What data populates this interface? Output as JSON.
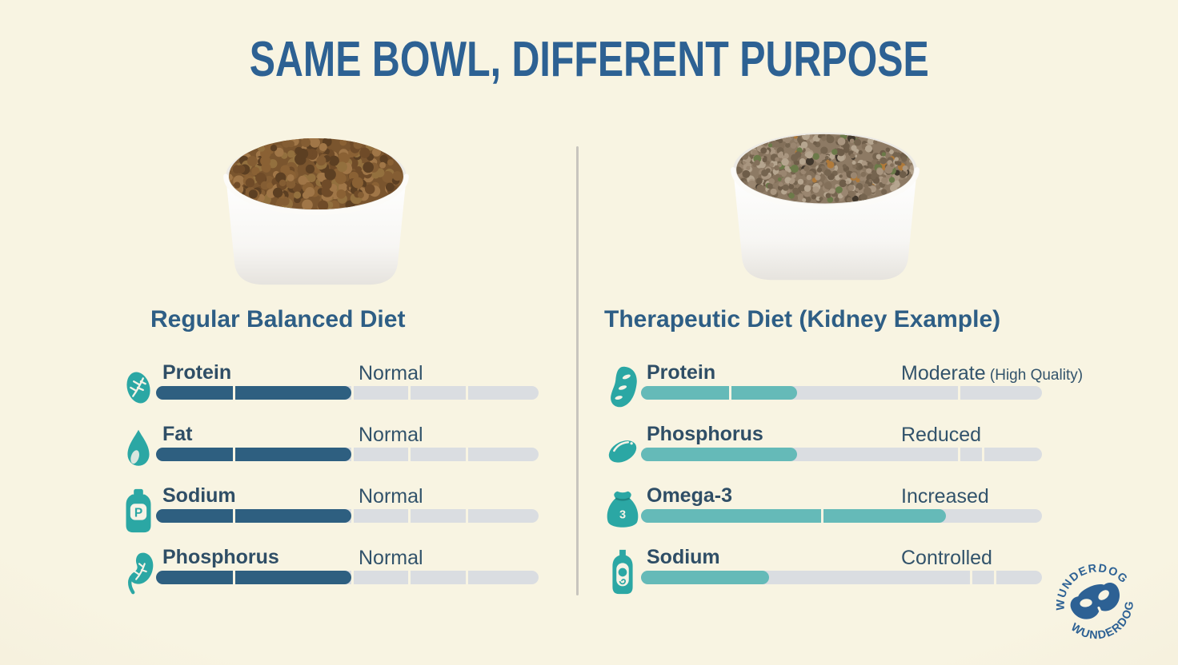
{
  "title": "SAME BOWL, DIFFERENT PURPOSE",
  "columns": [
    {
      "heading": "Regular Balanced Diet",
      "bowl": {
        "description": "white bowl of dry kibble",
        "base": "#7a552e",
        "palette": [
          "#8a6134",
          "#6f4b28",
          "#a07647",
          "#5c3f22",
          "#93703e",
          "#845d33"
        ],
        "mound_ry": 48,
        "count": 300,
        "rmin": 4,
        "rmax": 7.5
      },
      "bar_fill": "#2e5f80",
      "icon_color": "#2ba7a4",
      "rows": [
        {
          "icon": "protein-leaf-icon",
          "label": "Protein",
          "value": "Normal",
          "note": "",
          "fill_percent": 51,
          "gap_percents": [
            20,
            51,
            66,
            81
          ]
        },
        {
          "icon": "fat-droplet-icon",
          "label": "Fat",
          "value": "Normal",
          "note": "",
          "fill_percent": 51,
          "gap_percents": [
            20,
            51,
            66,
            81
          ]
        },
        {
          "icon": "sodium-bottle-icon",
          "icon_text": "P",
          "label": "Sodium",
          "value": "Normal",
          "note": "",
          "fill_percent": 51,
          "gap_percents": [
            20,
            51,
            66,
            81
          ]
        },
        {
          "icon": "phosphorus-kidney-icon",
          "label": "Phosphorus",
          "value": "Normal",
          "note": "",
          "fill_percent": 51,
          "gap_percents": [
            20,
            51,
            66,
            81
          ]
        }
      ]
    },
    {
      "heading": "Therapeutic Diet (Kidney Example)",
      "bowl": {
        "description": "white bowl of minced wet food",
        "base": "#8d7a64",
        "palette": [
          "#9a8670",
          "#83705a",
          "#a99680",
          "#6e5d49",
          "#b5a58f",
          "#75644f"
        ],
        "specks": [
          "#40372c",
          "#6b7a49",
          "#b07a3a"
        ],
        "mound_ry": 44,
        "count": 520,
        "rmin": 2.2,
        "rmax": 5
      },
      "bar_fill": "#65bab8",
      "icon_color": "#2ba7a4",
      "rows": [
        {
          "icon": "protein-bean-icon",
          "label": "Protein",
          "value": "Moderate",
          "note": "(High Quality)",
          "fill_percent": 39,
          "gap_percents": [
            22,
            79
          ]
        },
        {
          "icon": "phosphorus-bean-icon",
          "label": "Phosphorus",
          "value": "Reduced",
          "note": "",
          "fill_percent": 39,
          "gap_percents": [
            79,
            85
          ]
        },
        {
          "icon": "omega3-sack-icon",
          "icon_text": "3",
          "label": "Omega-3",
          "value": "Increased",
          "note": "",
          "fill_percent": 76,
          "gap_percents": [
            45
          ]
        },
        {
          "icon": "sodium-bottle-swirl-icon",
          "label": "Sodium",
          "value": "Controlled",
          "note": "",
          "fill_percent": 32,
          "gap_percents": [
            82,
            88
          ]
        }
      ]
    }
  ],
  "logo": {
    "top_text": "WUNDERDOG",
    "bottom_text": "WUNDERDOG"
  },
  "colors": {
    "background": "#f8f4e2",
    "title_text": "#2d6193",
    "heading_text": "#2e5e85",
    "label_text": "#2f4e66",
    "value_text": "#32536b",
    "bar_track": "#dadde1",
    "divider": "#c8c5be",
    "logo_blue": "#2d6194",
    "icon_cutout": "#f6f3e6",
    "bowl_white": "#ffffff"
  }
}
